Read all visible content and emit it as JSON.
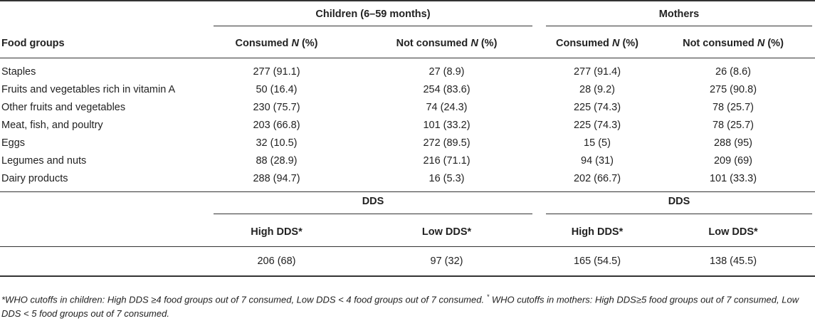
{
  "table": {
    "group_headers": {
      "children": "Children (6–59 months)",
      "mothers": "Mothers"
    },
    "column_headers": {
      "food_groups": "Food groups",
      "consumed_prefix": "Consumed ",
      "not_consumed_prefix": "Not consumed ",
      "n_symbol": "N",
      "pct_suffix": " (%)"
    },
    "rows": [
      {
        "label": "Staples",
        "c_cons": "277 (91.1)",
        "c_not": "27 (8.9)",
        "m_cons": "277 (91.4)",
        "m_not": "26 (8.6)"
      },
      {
        "label": "Fruits and vegetables rich in vitamin A",
        "c_cons": "50 (16.4)",
        "c_not": "254 (83.6)",
        "m_cons": "28 (9.2)",
        "m_not": "275 (90.8)"
      },
      {
        "label": "Other fruits and vegetables",
        "c_cons": "230 (75.7)",
        "c_not": "74 (24.3)",
        "m_cons": "225 (74.3)",
        "m_not": "78 (25.7)"
      },
      {
        "label": "Meat, fish, and poultry",
        "c_cons": "203 (66.8)",
        "c_not": "101 (33.2)",
        "m_cons": "225 (74.3)",
        "m_not": "78 (25.7)"
      },
      {
        "label": "Eggs",
        "c_cons": "32 (10.5)",
        "c_not": "272 (89.5)",
        "m_cons": "15 (5)",
        "m_not": "288 (95)"
      },
      {
        "label": "Legumes and nuts",
        "c_cons": "88 (28.9)",
        "c_not": "216 (71.1)",
        "m_cons": "94 (31)",
        "m_not": "209 (69)"
      },
      {
        "label": "Dairy products",
        "c_cons": "288 (94.7)",
        "c_not": "16 (5.3)",
        "m_cons": "202 (66.7)",
        "m_not": "101 (33.3)"
      }
    ],
    "dds": {
      "children_title": "DDS",
      "mothers_title": "DDS",
      "high_label": "High DDS*",
      "low_label": "Low DDS*",
      "c_high": "206 (68)",
      "c_low": "97 (32)",
      "m_high": "165 (54.5)",
      "m_low": "138 (45.5)"
    }
  },
  "footnote": {
    "part1": "*WHO cutoffs in children: High DDS ≥4 food groups out of 7 consumed, Low DDS < 4 food groups out of 7 consumed. ",
    "star": "*",
    "part2": " WHO cutoffs in mothers: High DDS≥5 food groups out of 7 consumed, Low DDS < 5 food groups out of 7 consumed."
  }
}
